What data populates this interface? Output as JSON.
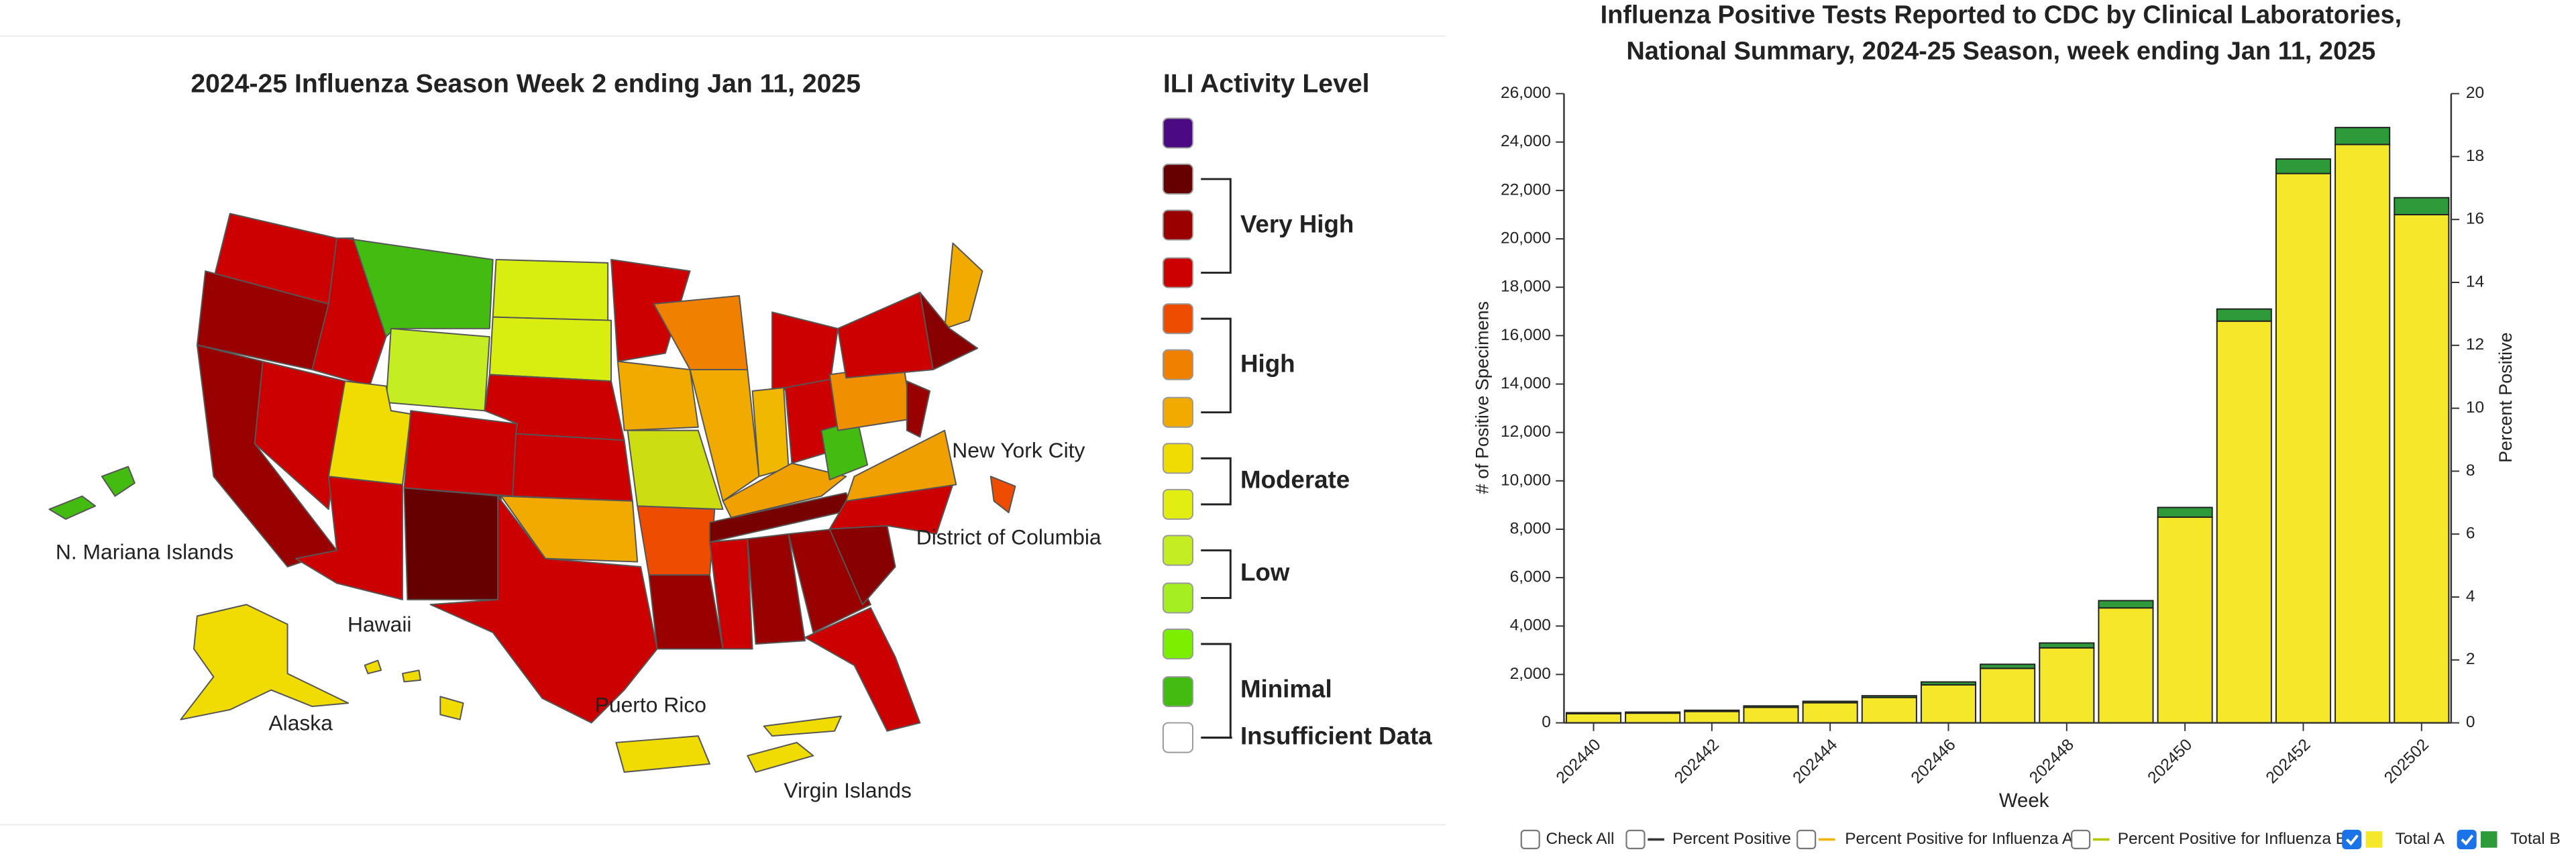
{
  "map": {
    "title": "2024-25 Influenza Season Week 2 ending Jan 11, 2025",
    "legend_title": "ILI Activity Level",
    "swatch_colors": [
      "#4b0a82",
      "#660000",
      "#990000",
      "#cc0000",
      "#ee4c00",
      "#f08000",
      "#f0aa00",
      "#f0dc00",
      "#e2ee11",
      "#c4ee22",
      "#a4ee22",
      "#7cee00",
      "#44bb11",
      "#ffffff"
    ],
    "levels": [
      "Very High",
      "High",
      "Moderate",
      "Low",
      "Minimal",
      "Insufficient Data"
    ],
    "places": [
      "N. Mariana Islands",
      "Hawaii",
      "Alaska",
      "Puerto Rico",
      "Virgin Islands",
      "New York City",
      "District of Columbia"
    ]
  },
  "chart_data": {
    "type": "bar",
    "stacked": true,
    "title": [
      "Influenza Positive Tests Reported to CDC by Clinical Laboratories,",
      "National Summary, 2024-25 Season, week ending Jan 11, 2025"
    ],
    "x_label": "Week",
    "y_label": "# of Positive Specimens",
    "y2_label": "Percent Positive",
    "categories": [
      "202440",
      null,
      "202442",
      null,
      "202444",
      null,
      "202446",
      null,
      "202448",
      null,
      "202450",
      null,
      "202452",
      null,
      "202502"
    ],
    "series": [
      {
        "name": "Total A",
        "color": "#f5e72a",
        "values": [
          380,
          400,
          470,
          640,
          830,
          1050,
          1570,
          2250,
          3100,
          4750,
          8500,
          16600,
          22700,
          23900,
          21000
        ]
      },
      {
        "name": "Total B",
        "color": "#2e9a3a",
        "values": [
          40,
          45,
          50,
          60,
          60,
          70,
          120,
          170,
          200,
          300,
          400,
          500,
          600,
          700,
          700
        ]
      }
    ],
    "ylim": [
      0,
      26000
    ],
    "yticks": [
      0,
      {
        "value": 2000,
        "label": "2,000"
      },
      {
        "value": 4000,
        "label": "4,000"
      },
      {
        "value": 6000,
        "label": "6,000"
      },
      {
        "value": 8000,
        "label": "8,000"
      },
      {
        "value": 10000,
        "label": "10,000"
      },
      {
        "value": 12000,
        "label": "12,000"
      },
      {
        "value": 14000,
        "label": "14,000"
      },
      {
        "value": 16000,
        "label": "16,000"
      },
      {
        "value": 18000,
        "label": "18,000"
      },
      {
        "value": 20000,
        "label": "20,000"
      },
      {
        "value": 22000,
        "label": "22,000"
      },
      {
        "value": 24000,
        "label": "24,000"
      },
      {
        "value": 26000,
        "label": "26,000"
      }
    ],
    "y2lim": [
      0,
      20
    ],
    "y2ticks": [
      0,
      2,
      4,
      6,
      8,
      10,
      12,
      14,
      16,
      18,
      20
    ],
    "toggles": [
      {
        "label": "Check All"
      },
      {
        "label": "Percent Positive",
        "color": "#333333"
      },
      {
        "label": "Percent Positive for Influenza A",
        "color": "#f0b400"
      },
      {
        "label": "Percent Positive for Influenza B",
        "color": "#b8c800"
      }
    ]
  }
}
